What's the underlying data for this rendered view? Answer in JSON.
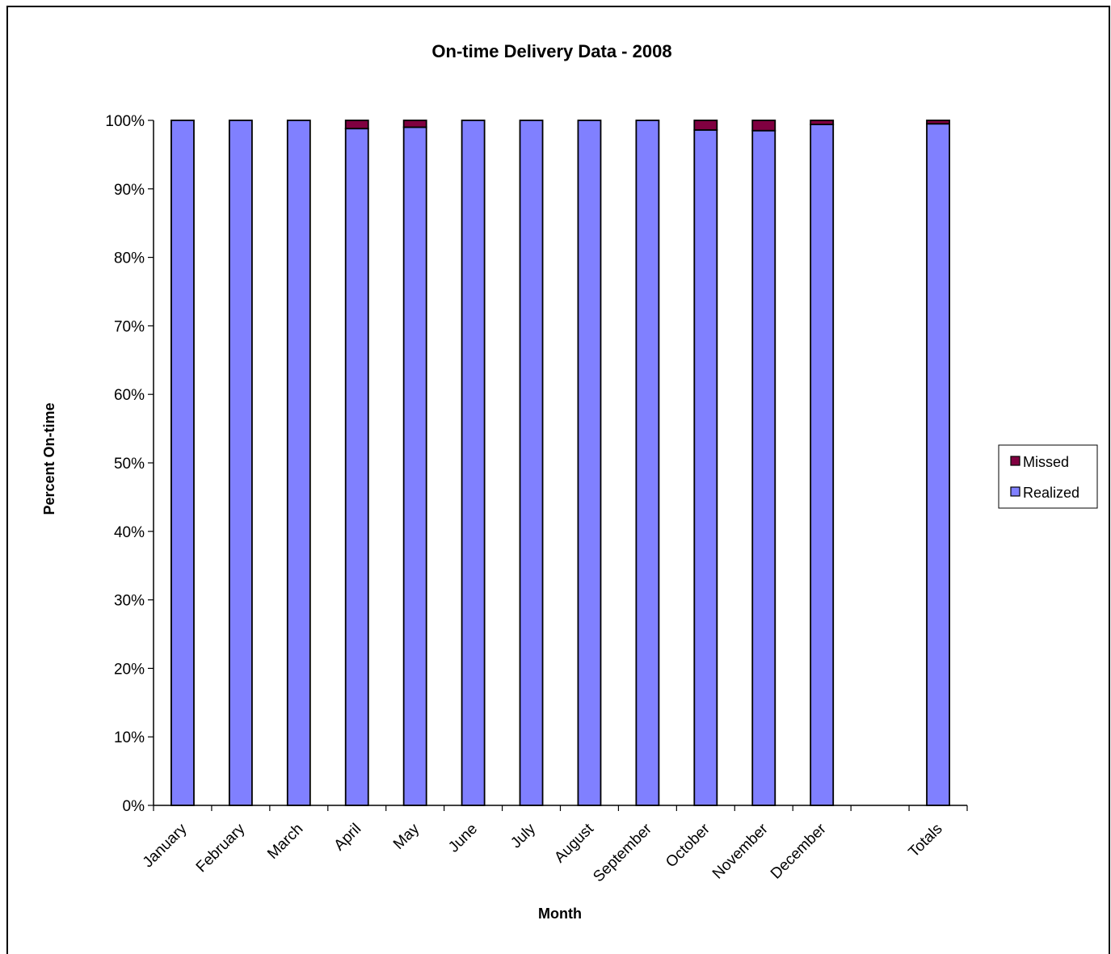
{
  "chart_data": {
    "type": "bar",
    "stacked": true,
    "title": "On-time Delivery Data - 2008",
    "xlabel": "Month",
    "ylabel": "Percent On-time",
    "categories": [
      "January",
      "February",
      "March",
      "April",
      "May",
      "June",
      "July",
      "August",
      "September",
      "October",
      "November",
      "December",
      "",
      "Totals"
    ],
    "ylim": [
      0,
      100
    ],
    "y_ticks": [
      "0%",
      "10%",
      "20%",
      "30%",
      "40%",
      "50%",
      "60%",
      "70%",
      "80%",
      "90%",
      "100%"
    ],
    "series": [
      {
        "name": "Realized",
        "color": "#8080ff",
        "values": [
          100,
          100,
          100,
          98.8,
          99.0,
          100,
          100,
          100,
          100,
          98.6,
          98.5,
          99.4,
          null,
          99.5
        ]
      },
      {
        "name": "Missed",
        "color": "#800040",
        "values": [
          0,
          0,
          0,
          1.2,
          1.0,
          0,
          0,
          0,
          0,
          1.4,
          1.5,
          0.6,
          null,
          0.5
        ]
      }
    ],
    "legend": {
      "position": "right",
      "entries": [
        "Missed",
        "Realized"
      ]
    },
    "grid": false
  }
}
